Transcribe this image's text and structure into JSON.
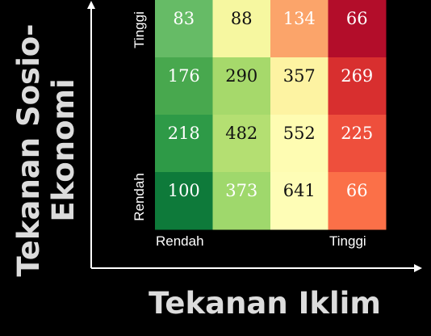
{
  "chart_data": {
    "type": "heatmap",
    "xlabel": "Tekanan Iklim",
    "ylabel_lines": [
      "Tekanan Sosio-",
      "Ekonomi"
    ],
    "x_tick_labels": [
      "Rendah",
      "Tinggi"
    ],
    "y_tick_labels": [
      "Tinggi",
      "Rendah"
    ],
    "rows": [
      [
        83,
        88,
        134,
        66
      ],
      [
        176,
        290,
        357,
        269
      ],
      [
        218,
        482,
        552,
        225
      ],
      [
        100,
        373,
        641,
        66
      ]
    ],
    "cell_colors": [
      [
        "#66bb66",
        "#f6f7a0",
        "#fba46a",
        "#b30d2a"
      ],
      [
        "#48a84e",
        "#a6d96b",
        "#fdf3a2",
        "#d82f2f"
      ],
      [
        "#2e9a47",
        "#b4df72",
        "#fefcb2",
        "#ee4f3c"
      ],
      [
        "#0e7a3a",
        "#9fd86c",
        "#fefdb6",
        "#fb7048"
      ]
    ],
    "text_colors": [
      [
        "#ffffff",
        "#111111",
        "#ffffff",
        "#ffffff"
      ],
      [
        "#ffffff",
        "#111111",
        "#111111",
        "#ffffff"
      ],
      [
        "#ffffff",
        "#111111",
        "#111111",
        "#ffffff"
      ],
      [
        "#ffffff",
        "#ffffff",
        "#111111",
        "#ffffff"
      ]
    ],
    "background": "#000000",
    "axis_color": "#ffffff",
    "legend": "none",
    "grid": false
  }
}
